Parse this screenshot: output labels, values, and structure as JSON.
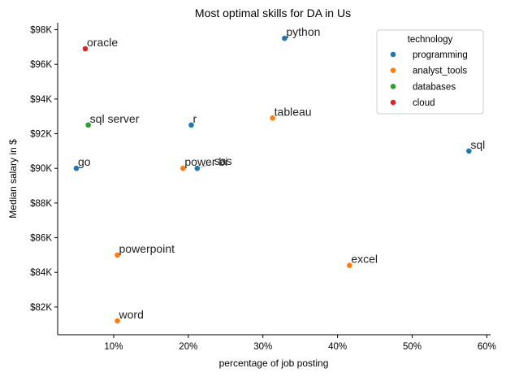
{
  "chart_data": {
    "type": "scatter",
    "title": "Most optimal skills for DA in Us",
    "xlabel": "percentage of job posting",
    "ylabel": "Median salary in $",
    "xlim": [
      2.5,
      60.5
    ],
    "ylim": [
      80.4,
      98.4
    ],
    "x_ticks": [
      10,
      20,
      30,
      40,
      50,
      60
    ],
    "x_tick_labels": [
      "10%",
      "20%",
      "30%",
      "40%",
      "50%",
      "60%"
    ],
    "y_ticks": [
      82,
      84,
      86,
      88,
      90,
      92,
      94,
      96,
      98
    ],
    "y_tick_labels": [
      "$82K",
      "$84K",
      "$86K",
      "$88K",
      "$90K",
      "$92K",
      "$94K",
      "$96K",
      "$98K"
    ],
    "grid": false,
    "legend": {
      "title": "technology",
      "placement": "top-right",
      "entries": [
        {
          "name": "programming",
          "color": "#1f77b4"
        },
        {
          "name": "analyst_tools",
          "color": "#ff7f0e"
        },
        {
          "name": "databases",
          "color": "#2ca02c"
        },
        {
          "name": "cloud",
          "color": "#d62728"
        }
      ]
    },
    "points": [
      {
        "label": "oracle",
        "x": 6.2,
        "y": 96.9,
        "technology": "cloud"
      },
      {
        "label": "python",
        "x": 32.9,
        "y": 97.5,
        "technology": "programming"
      },
      {
        "label": "tableau",
        "x": 31.3,
        "y": 92.9,
        "technology": "analyst_tools"
      },
      {
        "label": "sql server",
        "x": 6.6,
        "y": 92.5,
        "technology": "databases"
      },
      {
        "label": "r",
        "x": 20.4,
        "y": 92.5,
        "technology": "programming"
      },
      {
        "label": "sql",
        "x": 57.6,
        "y": 91.0,
        "technology": "programming"
      },
      {
        "label": "go",
        "x": 5.0,
        "y": 90.0,
        "technology": "programming"
      },
      {
        "label": "power bi",
        "x": 19.3,
        "y": 90.0,
        "technology": "analyst_tools"
      },
      {
        "label": "sas",
        "x": 21.2,
        "y": 90.0,
        "technology": "programming"
      },
      {
        "label": "powerpoint",
        "x": 10.5,
        "y": 85.0,
        "technology": "analyst_tools"
      },
      {
        "label": "excel",
        "x": 41.6,
        "y": 84.4,
        "technology": "analyst_tools"
      },
      {
        "label": "word",
        "x": 10.5,
        "y": 81.2,
        "technology": "analyst_tools"
      }
    ]
  }
}
